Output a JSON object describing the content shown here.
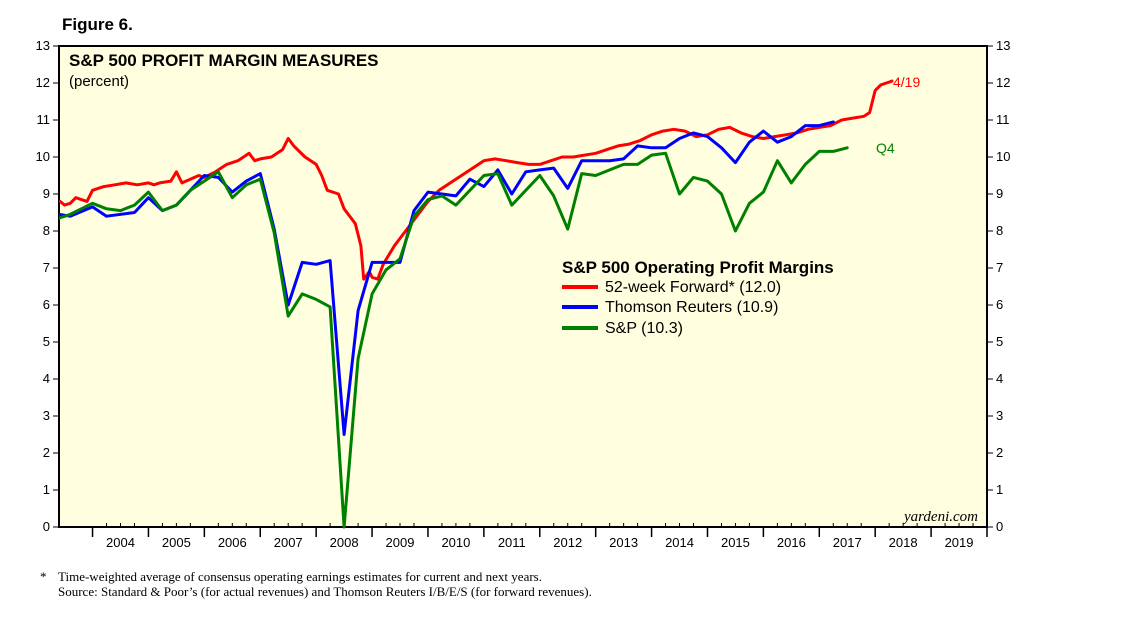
{
  "figure_label": "Figure 6.",
  "credit": "yardeni.com",
  "footnotes": {
    "asterisk": "*",
    "line1": "Time-weighted average of consensus operating earnings estimates for current and next years.",
    "line2": "Source: Standard & Poor’s (for actual revenues) and Thomson Reuters I/B/E/S (for forward revenues)."
  },
  "chart_data": {
    "type": "line",
    "title": "S&P 500 PROFIT MARGIN MEASURES",
    "subtitle": "(percent)",
    "legend_title": "S&P 500 Operating Profit Margins",
    "ylim": [
      0,
      13
    ],
    "xlim": [
      2003.4,
      2020.0
    ],
    "y_ticks": [
      0,
      1,
      2,
      3,
      4,
      5,
      6,
      7,
      8,
      9,
      10,
      11,
      12,
      13
    ],
    "x_tick_labels": [
      "2004",
      "2005",
      "2006",
      "2007",
      "2008",
      "2009",
      "2010",
      "2011",
      "2012",
      "2013",
      "2014",
      "2015",
      "2016",
      "2017",
      "2018",
      "2019"
    ],
    "background_color": "#ffffe0",
    "annotations": [
      {
        "text": "4/19",
        "series": "52-week Forward",
        "color": "#ff0000"
      },
      {
        "text": "Q4",
        "series": "S&P",
        "color": "#008000"
      }
    ],
    "series": [
      {
        "name": "52-week Forward",
        "legend_label": "52-week Forward* (12.0)",
        "color": "#ff0000",
        "points": [
          [
            2003.42,
            8.8
          ],
          [
            2003.5,
            8.7
          ],
          [
            2003.6,
            8.75
          ],
          [
            2003.7,
            8.9
          ],
          [
            2003.8,
            8.85
          ],
          [
            2003.9,
            8.8
          ],
          [
            2004.0,
            9.1
          ],
          [
            2004.2,
            9.2
          ],
          [
            2004.4,
            9.25
          ],
          [
            2004.6,
            9.3
          ],
          [
            2004.8,
            9.25
          ],
          [
            2005.0,
            9.3
          ],
          [
            2005.1,
            9.25
          ],
          [
            2005.2,
            9.3
          ],
          [
            2005.4,
            9.35
          ],
          [
            2005.5,
            9.6
          ],
          [
            2005.6,
            9.3
          ],
          [
            2005.9,
            9.5
          ],
          [
            2006.0,
            9.45
          ],
          [
            2006.2,
            9.6
          ],
          [
            2006.4,
            9.8
          ],
          [
            2006.6,
            9.9
          ],
          [
            2006.8,
            10.1
          ],
          [
            2006.9,
            9.9
          ],
          [
            2007.0,
            9.95
          ],
          [
            2007.2,
            10.0
          ],
          [
            2007.4,
            10.2
          ],
          [
            2007.5,
            10.5
          ],
          [
            2007.6,
            10.3
          ],
          [
            2007.8,
            10.0
          ],
          [
            2008.0,
            9.8
          ],
          [
            2008.1,
            9.5
          ],
          [
            2008.2,
            9.1
          ],
          [
            2008.4,
            9.0
          ],
          [
            2008.5,
            8.6
          ],
          [
            2008.7,
            8.2
          ],
          [
            2008.8,
            7.6
          ],
          [
            2008.85,
            6.7
          ],
          [
            2008.95,
            6.9
          ],
          [
            2009.0,
            6.75
          ],
          [
            2009.1,
            6.7
          ],
          [
            2009.2,
            7.1
          ],
          [
            2009.4,
            7.6
          ],
          [
            2009.6,
            8.0
          ],
          [
            2009.8,
            8.4
          ],
          [
            2010.0,
            8.8
          ],
          [
            2010.2,
            9.1
          ],
          [
            2010.4,
            9.3
          ],
          [
            2010.6,
            9.5
          ],
          [
            2010.8,
            9.7
          ],
          [
            2011.0,
            9.9
          ],
          [
            2011.2,
            9.95
          ],
          [
            2011.4,
            9.9
          ],
          [
            2011.6,
            9.85
          ],
          [
            2011.8,
            9.8
          ],
          [
            2012.0,
            9.8
          ],
          [
            2012.2,
            9.9
          ],
          [
            2012.4,
            10.0
          ],
          [
            2012.6,
            10.0
          ],
          [
            2012.8,
            10.05
          ],
          [
            2013.0,
            10.1
          ],
          [
            2013.2,
            10.2
          ],
          [
            2013.4,
            10.3
          ],
          [
            2013.6,
            10.35
          ],
          [
            2013.8,
            10.45
          ],
          [
            2014.0,
            10.6
          ],
          [
            2014.2,
            10.7
          ],
          [
            2014.4,
            10.75
          ],
          [
            2014.6,
            10.7
          ],
          [
            2014.8,
            10.55
          ],
          [
            2015.0,
            10.6
          ],
          [
            2015.2,
            10.75
          ],
          [
            2015.4,
            10.8
          ],
          [
            2015.6,
            10.65
          ],
          [
            2015.8,
            10.55
          ],
          [
            2016.0,
            10.5
          ],
          [
            2016.2,
            10.55
          ],
          [
            2016.4,
            10.6
          ],
          [
            2016.6,
            10.65
          ],
          [
            2016.8,
            10.75
          ],
          [
            2017.0,
            10.8
          ],
          [
            2017.2,
            10.85
          ],
          [
            2017.4,
            11.0
          ],
          [
            2017.6,
            11.05
          ],
          [
            2017.8,
            11.1
          ],
          [
            2017.9,
            11.2
          ],
          [
            2018.0,
            11.8
          ],
          [
            2018.1,
            11.95
          ],
          [
            2018.2,
            12.0
          ],
          [
            2018.3,
            12.05
          ]
        ]
      },
      {
        "name": "Thomson Reuters",
        "legend_label": "Thomson Reuters (10.9)",
        "color": "#0000ff",
        "points": [
          [
            2003.4,
            8.45
          ],
          [
            2003.6,
            8.4
          ],
          [
            2004.0,
            8.65
          ],
          [
            2004.25,
            8.4
          ],
          [
            2004.75,
            8.5
          ],
          [
            2005.0,
            8.9
          ],
          [
            2005.25,
            8.55
          ],
          [
            2005.5,
            8.7
          ],
          [
            2005.75,
            9.1
          ],
          [
            2006.0,
            9.5
          ],
          [
            2006.25,
            9.45
          ],
          [
            2006.5,
            9.05
          ],
          [
            2006.75,
            9.35
          ],
          [
            2007.0,
            9.55
          ],
          [
            2007.25,
            8.05
          ],
          [
            2007.5,
            6.0
          ],
          [
            2007.75,
            7.15
          ],
          [
            2008.0,
            7.1
          ],
          [
            2008.25,
            7.2
          ],
          [
            2008.5,
            2.5
          ],
          [
            2008.75,
            5.85
          ],
          [
            2009.0,
            7.15
          ],
          [
            2009.25,
            7.15
          ],
          [
            2009.5,
            7.15
          ],
          [
            2009.75,
            8.55
          ],
          [
            2010.0,
            9.05
          ],
          [
            2010.25,
            9.0
          ],
          [
            2010.5,
            8.95
          ],
          [
            2010.75,
            9.4
          ],
          [
            2011.0,
            9.2
          ],
          [
            2011.25,
            9.65
          ],
          [
            2011.5,
            9.0
          ],
          [
            2011.75,
            9.6
          ],
          [
            2012.0,
            9.65
          ],
          [
            2012.25,
            9.7
          ],
          [
            2012.5,
            9.15
          ],
          [
            2012.75,
            9.9
          ],
          [
            2013.0,
            9.9
          ],
          [
            2013.25,
            9.9
          ],
          [
            2013.5,
            9.95
          ],
          [
            2013.75,
            10.3
          ],
          [
            2014.0,
            10.25
          ],
          [
            2014.25,
            10.25
          ],
          [
            2014.5,
            10.5
          ],
          [
            2014.75,
            10.65
          ],
          [
            2015.0,
            10.55
          ],
          [
            2015.25,
            10.25
          ],
          [
            2015.5,
            9.85
          ],
          [
            2015.75,
            10.4
          ],
          [
            2016.0,
            10.7
          ],
          [
            2016.25,
            10.4
          ],
          [
            2016.5,
            10.55
          ],
          [
            2016.75,
            10.85
          ],
          [
            2017.0,
            10.85
          ],
          [
            2017.25,
            10.95
          ]
        ]
      },
      {
        "name": "S&P",
        "legend_label": "S&P  (10.3)",
        "color": "#008000",
        "points": [
          [
            2003.4,
            8.35
          ],
          [
            2003.6,
            8.45
          ],
          [
            2004.0,
            8.75
          ],
          [
            2004.25,
            8.6
          ],
          [
            2004.5,
            8.55
          ],
          [
            2004.75,
            8.7
          ],
          [
            2005.0,
            9.05
          ],
          [
            2005.25,
            8.55
          ],
          [
            2005.5,
            8.7
          ],
          [
            2005.75,
            9.1
          ],
          [
            2006.0,
            9.35
          ],
          [
            2006.25,
            9.6
          ],
          [
            2006.5,
            8.9
          ],
          [
            2006.75,
            9.25
          ],
          [
            2007.0,
            9.4
          ],
          [
            2007.25,
            7.95
          ],
          [
            2007.5,
            5.7
          ],
          [
            2007.75,
            6.3
          ],
          [
            2008.0,
            6.15
          ],
          [
            2008.25,
            5.95
          ],
          [
            2008.5,
            0.0
          ],
          [
            2008.75,
            4.55
          ],
          [
            2009.0,
            6.3
          ],
          [
            2009.25,
            6.95
          ],
          [
            2009.5,
            7.25
          ],
          [
            2009.75,
            8.4
          ],
          [
            2010.0,
            8.85
          ],
          [
            2010.25,
            8.95
          ],
          [
            2010.5,
            8.7
          ],
          [
            2010.75,
            9.1
          ],
          [
            2011.0,
            9.5
          ],
          [
            2011.25,
            9.55
          ],
          [
            2011.5,
            8.7
          ],
          [
            2011.75,
            9.1
          ],
          [
            2012.0,
            9.5
          ],
          [
            2012.25,
            8.95
          ],
          [
            2012.5,
            8.05
          ],
          [
            2012.75,
            9.55
          ],
          [
            2013.0,
            9.5
          ],
          [
            2013.25,
            9.65
          ],
          [
            2013.5,
            9.8
          ],
          [
            2013.75,
            9.8
          ],
          [
            2014.0,
            10.05
          ],
          [
            2014.25,
            10.1
          ],
          [
            2014.5,
            9.0
          ],
          [
            2014.75,
            9.45
          ],
          [
            2015.0,
            9.35
          ],
          [
            2015.25,
            9.0
          ],
          [
            2015.5,
            8.0
          ],
          [
            2015.75,
            8.75
          ],
          [
            2016.0,
            9.05
          ],
          [
            2016.25,
            9.9
          ],
          [
            2016.5,
            9.3
          ],
          [
            2016.75,
            9.8
          ],
          [
            2017.0,
            10.15
          ],
          [
            2017.25,
            10.15
          ],
          [
            2017.5,
            10.25
          ]
        ]
      }
    ]
  }
}
